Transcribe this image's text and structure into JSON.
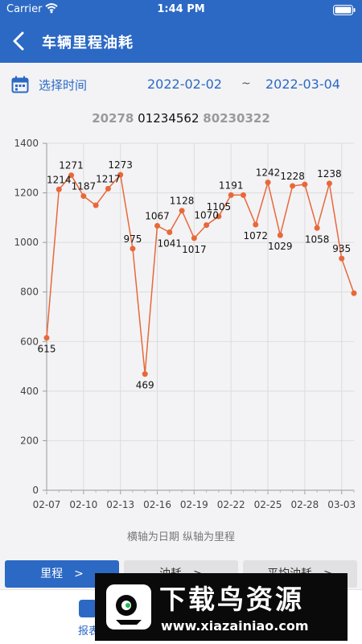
{
  "status_bar": {
    "carrier": "Carrier",
    "time": "1:44 PM"
  },
  "header": {
    "title": "车辆里程油耗"
  },
  "date_range": {
    "label": "选择时间",
    "start": "2022-02-02",
    "separator": "~",
    "end": "2022-03-04"
  },
  "plates": {
    "prev": "20278",
    "current": "01234562",
    "next": "80230322"
  },
  "chart_data": {
    "type": "line",
    "title": "",
    "x": [
      "02-07",
      "02-08",
      "02-09",
      "02-10",
      "02-11",
      "02-12",
      "02-13",
      "02-14",
      "02-15",
      "02-16",
      "02-17",
      "02-18",
      "02-19",
      "02-20",
      "02-21",
      "02-22",
      "02-23",
      "02-24",
      "02-25",
      "02-26",
      "02-27",
      "02-28",
      "03-01",
      "03-02",
      "03-03",
      "03-04"
    ],
    "values": [
      615,
      1214,
      1271,
      1187,
      1150,
      1217,
      1273,
      975,
      469,
      1067,
      1041,
      1128,
      1017,
      1070,
      1105,
      1191,
      1191,
      1072,
      1242,
      1029,
      1228,
      1234,
      1058,
      1238,
      935,
      795
    ],
    "data_labels": [
      {
        "i": 0,
        "text": "615"
      },
      {
        "i": 1,
        "text": "1214"
      },
      {
        "i": 2,
        "text": "1271"
      },
      {
        "i": 3,
        "text": "1187"
      },
      {
        "i": 5,
        "text": "1217"
      },
      {
        "i": 6,
        "text": "1273"
      },
      {
        "i": 7,
        "text": "975"
      },
      {
        "i": 8,
        "text": "469"
      },
      {
        "i": 9,
        "text": "1067"
      },
      {
        "i": 10,
        "text": "1041"
      },
      {
        "i": 11,
        "text": "1128"
      },
      {
        "i": 12,
        "text": "1017"
      },
      {
        "i": 13,
        "text": "1070"
      },
      {
        "i": 14,
        "text": "1105"
      },
      {
        "i": 15,
        "text": "1191"
      },
      {
        "i": 17,
        "text": "1072"
      },
      {
        "i": 18,
        "text": "1242"
      },
      {
        "i": 19,
        "text": "1029"
      },
      {
        "i": 20,
        "text": "1228"
      },
      {
        "i": 22,
        "text": "1058"
      },
      {
        "i": 23,
        "text": "1238"
      },
      {
        "i": 24,
        "text": "935"
      }
    ],
    "x_tick_labels": [
      "02-07",
      "02-10",
      "02-13",
      "02-16",
      "02-19",
      "02-22",
      "02-25",
      "02-28",
      "03-03"
    ],
    "y_ticks": [
      0,
      200,
      400,
      600,
      800,
      1000,
      1200,
      1400
    ],
    "ylim": [
      0,
      1400
    ],
    "grid": true,
    "line_color": "#e8683a",
    "xlabel": "",
    "ylabel": ""
  },
  "axis_caption": "横轴为日期 纵轴为里程",
  "tabs": [
    {
      "label": "里程　>",
      "active": true
    },
    {
      "label": "油耗　>",
      "active": false
    },
    {
      "label": "平均油耗　>",
      "active": false
    }
  ],
  "bottom_nav": {
    "report_label": "报表"
  },
  "watermark": {
    "title": "下载鸟资源",
    "url": "www.xiazainiao.com"
  },
  "icons": {
    "back": "chevron-left-icon",
    "calendar": "calendar-icon",
    "wifi": "wifi-icon",
    "battery": "battery-icon",
    "report": "report-icon"
  },
  "colors": {
    "primary": "#2c69c4",
    "line": "#e8683a"
  }
}
